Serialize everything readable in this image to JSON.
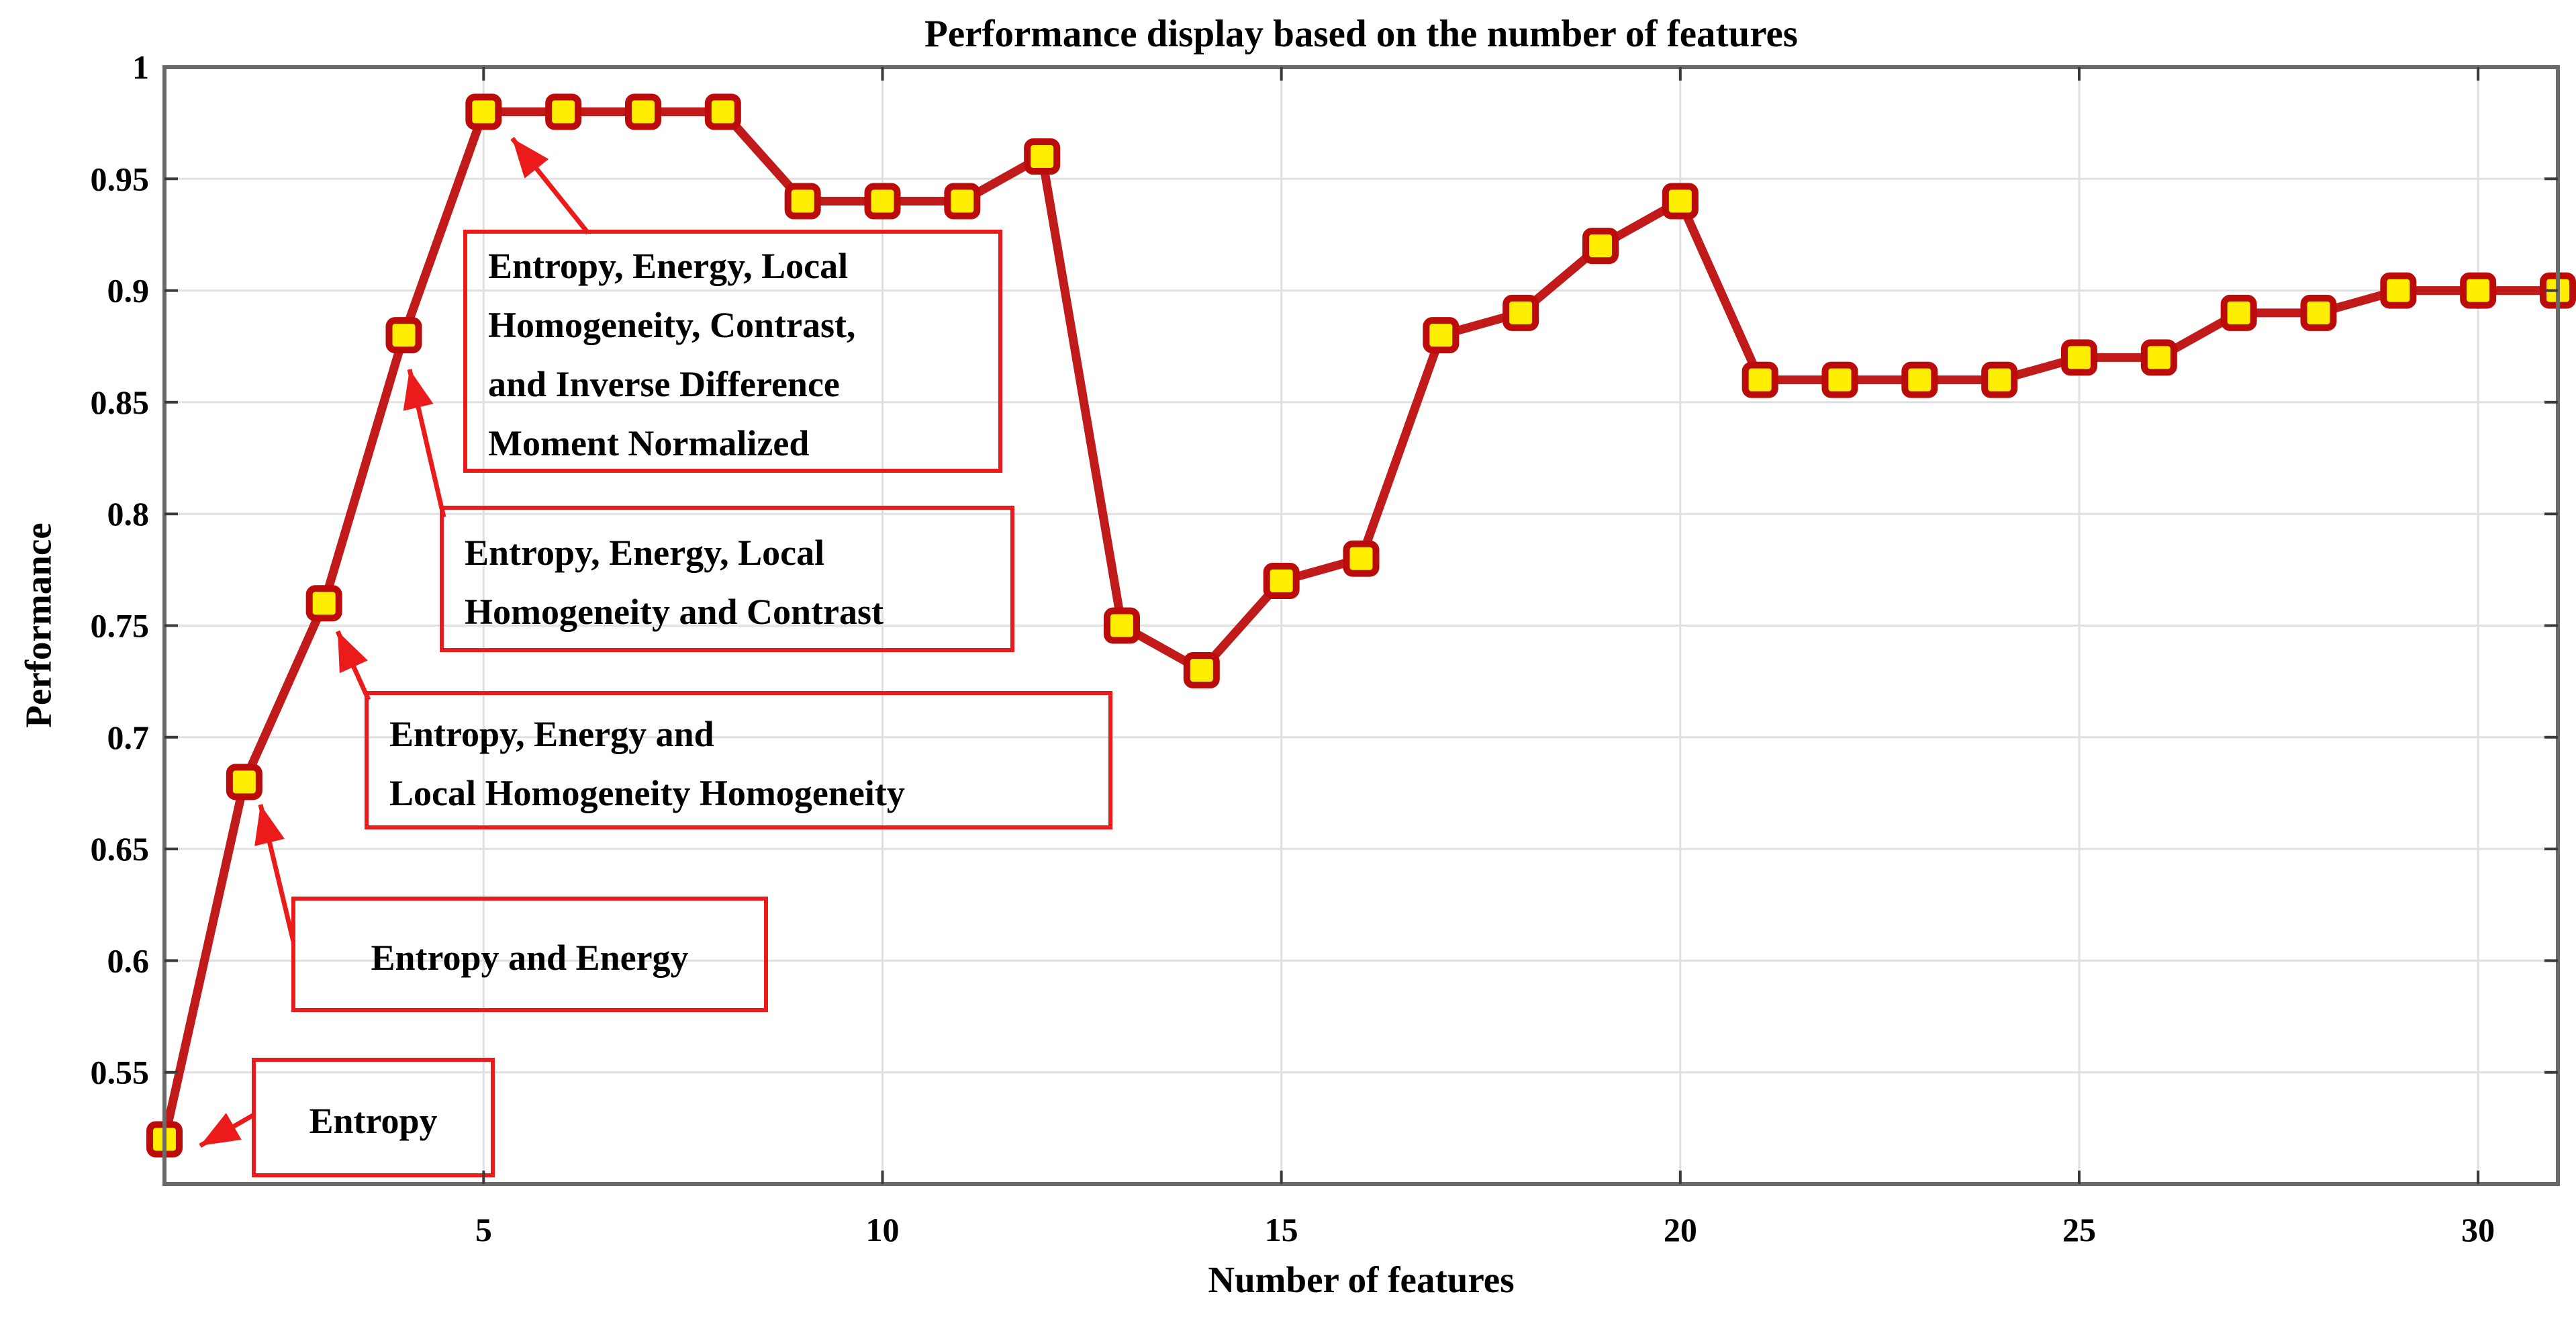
{
  "title": "Performance display based on the number of features",
  "chart_data": {
    "type": "line",
    "title": "Performance display based on the number of features",
    "xlabel": "Number of features",
    "ylabel": "Performance",
    "x": [
      1,
      2,
      3,
      4,
      5,
      6,
      7,
      8,
      9,
      10,
      11,
      12,
      13,
      14,
      15,
      16,
      17,
      18,
      19,
      20,
      21,
      22,
      23,
      24,
      25,
      26,
      27,
      28,
      29,
      30,
      31
    ],
    "values": [
      0.52,
      0.68,
      0.76,
      0.88,
      0.98,
      0.98,
      0.98,
      0.98,
      0.94,
      0.94,
      0.94,
      0.96,
      0.75,
      0.73,
      0.77,
      0.78,
      0.88,
      0.89,
      0.92,
      0.94,
      0.86,
      0.86,
      0.86,
      0.86,
      0.87,
      0.87,
      0.89,
      0.89,
      0.9,
      0.9,
      0.9
    ],
    "xlim": [
      1,
      31
    ],
    "ylim": [
      0.5,
      1.0
    ],
    "xticks": [
      5,
      10,
      15,
      20,
      25,
      30
    ],
    "xtick_labels": [
      "5",
      "10",
      "15",
      "20",
      "25",
      "30"
    ],
    "yticks": [
      1,
      0.95,
      0.9,
      0.85,
      0.8,
      0.75,
      0.7,
      0.65,
      0.6,
      0.55
    ],
    "ytick_labels": [
      "1",
      "0.95",
      "0.9",
      "0.85",
      "0.8",
      "0.75",
      "0.7",
      "0.65",
      "0.6",
      "0.55"
    ],
    "grid": true,
    "legend": null,
    "series_name": "Performance",
    "marker": "square",
    "annotations": [
      {
        "id": "entropy",
        "text_lines": [
          "Entropy"
        ],
        "target_x": 1,
        "target_y": 0.52
      },
      {
        "id": "entropy-energy",
        "text_lines": [
          "Entropy and Energy"
        ],
        "target_x": 2,
        "target_y": 0.68
      },
      {
        "id": "entropy-energy-localhom",
        "text_lines": [
          "Entropy, Energy and",
          "Local Homogeneity Homogeneity"
        ],
        "target_x": 3,
        "target_y": 0.76
      },
      {
        "id": "entropy-energy-localhom-contrast",
        "text_lines": [
          "Entropy, Energy, Local",
          "Homogeneity and Contrast"
        ],
        "target_x": 4,
        "target_y": 0.88
      },
      {
        "id": "entropy-energy-localhom-contrast-idmn",
        "text_lines": [
          "Entropy, Energy, Local",
          "Homogeneity, Contrast,",
          "and Inverse Difference",
          "Moment Normalized"
        ],
        "target_x": 5,
        "target_y": 0.98
      }
    ]
  },
  "colors": {
    "line": "#c11a1a",
    "marker_fill": "#ffee00",
    "marker_edge": "#bb0b0b",
    "annotation_red": "#ec1b1b",
    "grid": "#e0e0e0",
    "axis_border": "#6a6a6a",
    "tick": "#3a3a3a",
    "text": "#000000",
    "background": "#ffffff"
  }
}
